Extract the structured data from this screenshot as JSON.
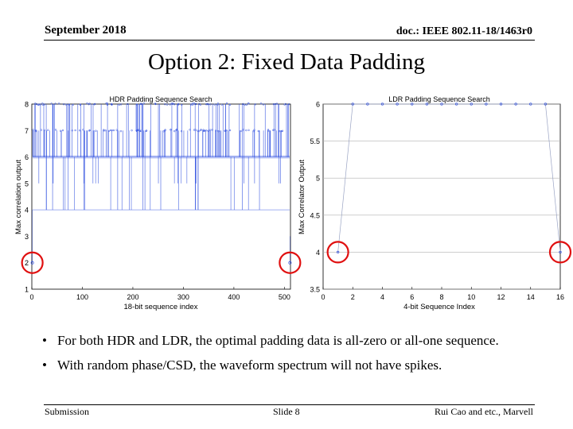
{
  "header": {
    "date": "September 2018",
    "doc": "doc.: IEEE 802.11-18/1463r0"
  },
  "title": "Option 2: Fixed Data Padding",
  "chart_data": [
    {
      "type": "scatter",
      "title": "HDR Padding Sequence Search",
      "xlabel": "18-bit sequence index",
      "ylabel": "Max correlation output",
      "xlim": [
        0,
        512
      ],
      "ylim": [
        1,
        8
      ],
      "xticks": [
        "0",
        "100",
        "200",
        "300",
        "400",
        "500"
      ],
      "yticks": [
        "1",
        "2",
        "3",
        "4",
        "5",
        "6",
        "7",
        "8"
      ],
      "series_color": "#3050e0",
      "x": [
        1,
        511
      ],
      "y": [
        2,
        2
      ],
      "highlight": [
        {
          "x": 1,
          "y": 2
        },
        {
          "x": 511,
          "y": 2
        }
      ],
      "highlight_color": "#e01010"
    },
    {
      "type": "scatter",
      "title": "LDR Padding Sequence Search",
      "xlabel": "4-bit Sequence Index",
      "ylabel": "Max Correlator Output",
      "xlim": [
        0,
        16
      ],
      "ylim": [
        3.5,
        6
      ],
      "xticks": [
        "0",
        "2",
        "4",
        "6",
        "8",
        "10",
        "12",
        "14",
        "16"
      ],
      "yticks": [
        "3.5",
        "4",
        "4.5",
        "5",
        "5.5",
        "6"
      ],
      "series_color": "#3050e0",
      "x": [
        1,
        2,
        3,
        4,
        5,
        6,
        7,
        8,
        9,
        10,
        11,
        12,
        13,
        14,
        15,
        16
      ],
      "y": [
        4,
        6,
        6,
        6,
        6,
        6,
        6,
        6,
        6,
        6,
        6,
        6,
        6,
        6,
        6,
        4
      ],
      "highlight": [
        {
          "x": 1,
          "y": 4
        },
        {
          "x": 16,
          "y": 4
        }
      ],
      "highlight_color": "#e01010"
    }
  ],
  "bullets": [
    "For both HDR and LDR, the optimal padding data is all-zero or all-one sequence.",
    "With random phase/CSD, the waveform spectrum will not have spikes."
  ],
  "footer": {
    "left": "Submission",
    "center": "Slide 8",
    "right": "Rui Cao and etc., Marvell"
  }
}
